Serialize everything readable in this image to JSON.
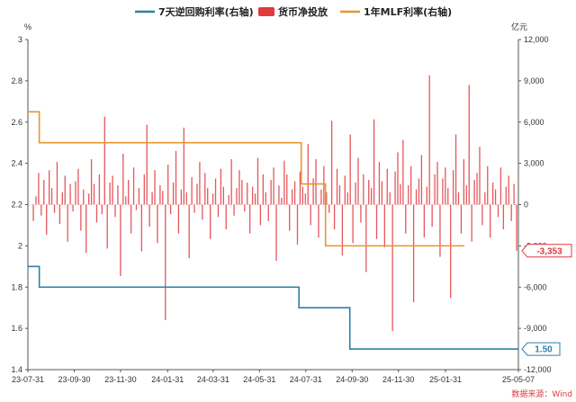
{
  "chart_data": {
    "type": "bar+line",
    "legend_position": "top",
    "left_axis": {
      "unit": "%",
      "ylim": [
        1.4,
        3.0
      ],
      "ticks": [
        1.4,
        1.6,
        1.8,
        2.0,
        2.2,
        2.4,
        2.6,
        2.8,
        3.0
      ],
      "tick_labels": [
        "1.4",
        "1.6",
        "1.8",
        "2",
        "2.2",
        "2.4",
        "2.6",
        "2.8",
        "3"
      ]
    },
    "right_axis": {
      "unit": "亿元",
      "ylim": [
        -12000,
        12000
      ],
      "ticks": [
        -12000,
        -9000,
        -6000,
        -3000,
        0,
        3000,
        6000,
        9000,
        12000
      ],
      "tick_labels": [
        "-12,000",
        "-9,000",
        "-6,000",
        "-3,000",
        "0",
        "3,000",
        "6,000",
        "9,000",
        "12,000"
      ]
    },
    "x_axis": {
      "range": [
        "2023-07-31",
        "2025-05-07"
      ],
      "tick_dates": [
        "2023-07-31",
        "2023-09-30",
        "2023-11-30",
        "2024-01-31",
        "2024-03-31",
        "2024-05-31",
        "2024-07-31",
        "2024-09-30",
        "2024-11-30",
        "2025-01-31",
        "2025-05-07"
      ],
      "tick_labels": [
        "23-07-31",
        "23-09-30",
        "23-11-30",
        "24-01-31",
        "24-03-31",
        "24-05-31",
        "24-07-31",
        "24-09-30",
        "24-11-30",
        "25-01-31",
        "25-05-07"
      ]
    },
    "series": [
      {
        "name": "7天逆回购利率(右轴)",
        "type": "step-line",
        "color": "#2f7fa8",
        "points": [
          [
            "2023-07-31",
            1.9
          ],
          [
            "2023-08-15",
            1.8
          ],
          [
            "2024-07-22",
            1.7
          ],
          [
            "2024-09-27",
            1.5
          ],
          [
            "2025-05-07",
            1.5
          ]
        ]
      },
      {
        "name": "货币净投放",
        "type": "bar",
        "color": "#e0393e",
        "note": "daily net injection, values in 亿元, read approximately",
        "values": [
          -1200,
          600,
          2300,
          -800,
          1800,
          -2200,
          2500,
          1200,
          -600,
          3100,
          -1400,
          900,
          2100,
          -2700,
          1500,
          -500,
          1700,
          2600,
          -1900,
          1100,
          -3500,
          800,
          3300,
          1500,
          -1300,
          2200,
          -700,
          6400,
          -3200,
          1600,
          2100,
          -900,
          1400,
          -5200,
          3700,
          600,
          1800,
          -2100,
          2700,
          -400,
          1200,
          -3400,
          2200,
          5800,
          -1600,
          900,
          2500,
          -2800,
          1400,
          1000,
          -8400,
          2900,
          -700,
          1600,
          3900,
          -2100,
          1100,
          5600,
          900,
          -3900,
          2000,
          -600,
          1500,
          3100,
          -1100,
          2300,
          1200,
          -2500,
          800,
          1900,
          -900,
          2600,
          1300,
          -1800,
          700,
          3300,
          -800,
          1200,
          2500,
          1800,
          -500,
          1600,
          -2100,
          1300,
          800,
          3400,
          -1500,
          2200,
          900,
          -1200,
          1800,
          2700,
          -4100,
          1400,
          500,
          3200,
          2200,
          -1900,
          1100,
          1700,
          -2900,
          2400,
          1300,
          800,
          4400,
          -1500,
          1900,
          3300,
          -2400,
          1100,
          2800,
          900,
          -600,
          6100,
          -1800,
          2600,
          1400,
          -3700,
          2100,
          900,
          5100,
          -2800,
          1600,
          3400,
          -1300,
          2200,
          -4900,
          1800,
          1200,
          6200,
          -2500,
          3100,
          1700,
          -3100,
          2600,
          900,
          -9200,
          2400,
          3800,
          1500,
          4700,
          -2100,
          1400,
          2800,
          -7100,
          1100,
          1900,
          3600,
          -2400,
          1300,
          9400,
          -1600,
          2200,
          3100,
          -3800,
          1900,
          2700,
          1200,
          -6800,
          2500,
          5100,
          900,
          -2100,
          3300,
          1400,
          8700,
          -2700,
          1800,
          2300,
          4200,
          -1500,
          900,
          2800,
          -2400,
          1600,
          1100,
          -900,
          2700,
          -1800,
          1300,
          2100,
          -1200,
          1500,
          -3353
        ],
        "callout_value": -3353,
        "callout_label": "-3,353"
      },
      {
        "name": "1年MLF利率(右轴)",
        "type": "step-line",
        "color": "#e8962f",
        "points": [
          [
            "2023-07-31",
            2.65
          ],
          [
            "2023-08-15",
            2.5
          ],
          [
            "2024-07-25",
            2.3
          ],
          [
            "2024-08-26",
            2.0
          ],
          [
            "2025-02-25",
            2.0
          ]
        ]
      }
    ],
    "callouts": [
      {
        "series": "货币净投放",
        "label": "-3,353",
        "color": "#e0393e"
      },
      {
        "series": "7天逆回购利率(右轴)",
        "label": "1.50",
        "color": "#2f7fa8"
      }
    ],
    "source_text": "数据来源：Wind"
  }
}
